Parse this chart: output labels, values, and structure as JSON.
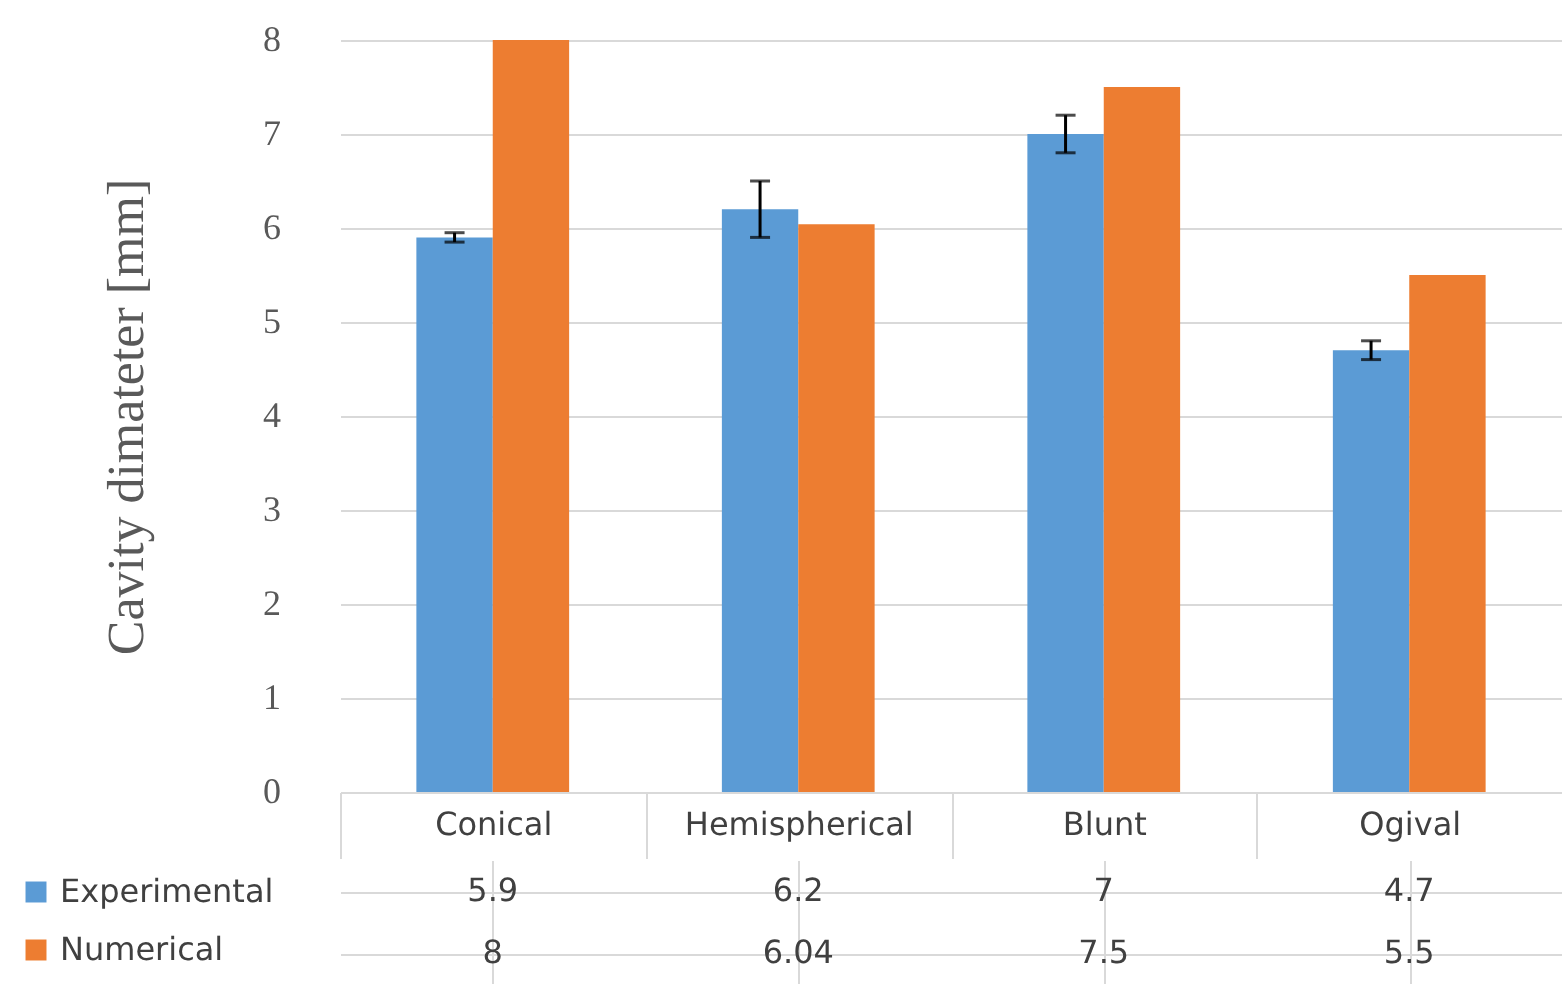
{
  "chart_data": {
    "type": "bar",
    "ylabel": "Cavity dimateter [mm]",
    "categories": [
      "Conical",
      "Hemispherical",
      "Blunt",
      "Ogival"
    ],
    "series": [
      {
        "name": "Experimental",
        "color": "#5b9bd5",
        "values": [
          5.9,
          6.2,
          7,
          4.7
        ],
        "errors": [
          0.05,
          0.3,
          0.2,
          0.1
        ]
      },
      {
        "name": "Numerical",
        "color": "#ed7d31",
        "values": [
          8,
          6.04,
          7.5,
          5.5
        ]
      }
    ],
    "ylim": [
      0,
      8
    ],
    "yticks": [
      0,
      1,
      2,
      3,
      4,
      5,
      6,
      7,
      8
    ],
    "grid": "y",
    "data_labels": true,
    "legend": "bottom left"
  }
}
